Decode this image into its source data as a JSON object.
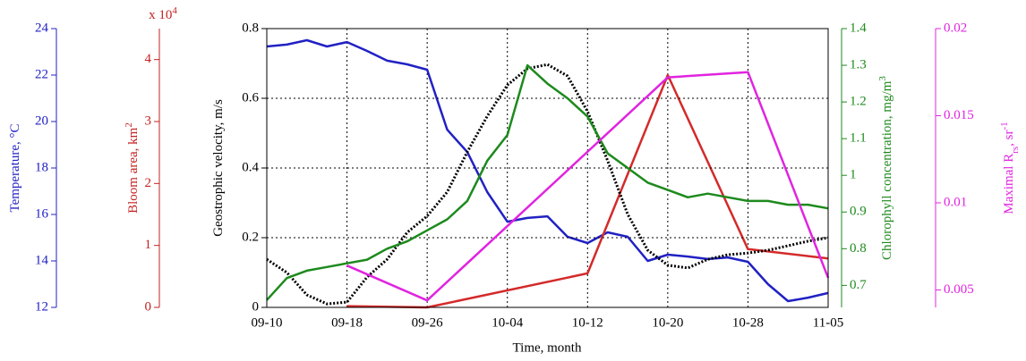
{
  "chart_data": {
    "type": "line",
    "xlabel": "Time, month",
    "xlim": [
      "09-10",
      "11-05"
    ],
    "xticks": [
      "09-10",
      "09-18",
      "09-26",
      "10-04",
      "10-12",
      "10-20",
      "10-28",
      "11-05"
    ],
    "x": [
      "09-10",
      "09-12",
      "09-14",
      "09-16",
      "09-18",
      "09-20",
      "09-22",
      "09-24",
      "09-26",
      "09-28",
      "09-30",
      "10-02",
      "10-04",
      "10-06",
      "10-08",
      "10-10",
      "10-12",
      "10-14",
      "10-16",
      "10-18",
      "10-20",
      "10-22",
      "10-24",
      "10-26",
      "10-28",
      "10-30",
      "11-01",
      "11-03",
      "11-05"
    ],
    "axes": [
      {
        "label": [
          {
            "text": "Temperature, °C"
          }
        ],
        "color": "#2121c4",
        "ylim": [
          12,
          24
        ],
        "yticks": [
          12,
          14,
          16,
          18,
          20,
          22,
          24
        ],
        "series": [
          {
            "color": "#2121c4",
            "style": "solid",
            "values": [
              23.23,
              23.31,
              23.5,
              23.23,
              23.42,
              23.04,
              22.62,
              22.46,
              22.23,
              19.65,
              18.69,
              16.96,
              15.69,
              15.85,
              15.92,
              15.04,
              14.77,
              15.23,
              15.04,
              14.0,
              14.27,
              14.19,
              14.08,
              14.15,
              13.96,
              13.0,
              12.27,
              12.42,
              12.62
            ]
          }
        ]
      },
      {
        "label": [
          {
            "text": "Bloom area, km"
          },
          {
            "sup": "2"
          }
        ],
        "scale": [
          {
            "text": "x 10"
          },
          {
            "sup": "4"
          }
        ],
        "color": "#c42121",
        "ylim": [
          0,
          4.5
        ],
        "yticks": [
          0,
          1,
          2,
          3,
          4
        ],
        "series": [
          {
            "color": "#d42a2a",
            "style": "solid",
            "x": [
              "09-18",
              "09-26",
              "10-12",
              "10-20",
              "10-28",
              "11-05"
            ],
            "values": [
              0.02,
              0,
              0.55,
              3.75,
              0.94,
              0.79
            ]
          }
        ]
      },
      {
        "label": [
          {
            "text": "Geostrophic velocity, m/s"
          }
        ],
        "color": "#000000",
        "grid": true,
        "ylim": [
          0,
          0.8
        ],
        "yticks": [
          0,
          0.2,
          0.4,
          0.6,
          0.8
        ],
        "series": [
          {
            "color": "#000000",
            "style": "dotted",
            "values": [
              0.138,
              0.1,
              0.036,
              0.01,
              0.015,
              0.087,
              0.138,
              0.215,
              0.262,
              0.331,
              0.446,
              0.549,
              0.638,
              0.685,
              0.697,
              0.664,
              0.562,
              0.421,
              0.267,
              0.164,
              0.121,
              0.113,
              0.138,
              0.151,
              0.156,
              0.164,
              0.177,
              0.19,
              0.2
            ]
          }
        ]
      },
      {
        "label": [
          {
            "text": "Chlorophyll concentration, mg/m"
          },
          {
            "sup": "3"
          }
        ],
        "color": "#1d8a1d",
        "ylim": [
          0.64,
          1.4
        ],
        "yticks": [
          0.7,
          0.8,
          0.9,
          1,
          1.1,
          1.2,
          1.3,
          1.4
        ],
        "series": [
          {
            "color": "#1d8a1d",
            "style": "solid",
            "values": [
              0.66,
              0.72,
              0.74,
              0.75,
              0.76,
              0.77,
              0.8,
              0.82,
              0.85,
              0.88,
              0.93,
              1.04,
              1.11,
              1.3,
              1.25,
              1.21,
              1.16,
              1.06,
              1.02,
              0.98,
              0.96,
              0.94,
              0.95,
              0.94,
              0.93,
              0.93,
              0.92,
              0.92,
              0.91
            ]
          }
        ]
      },
      {
        "label": [
          {
            "text": "Maximal R"
          },
          {
            "sub": "rs"
          },
          {
            "text": ", sr"
          },
          {
            "sup": "-1"
          }
        ],
        "color": "#e024e0",
        "ylim": [
          0.004,
          0.02
        ],
        "yticks": [
          0.005,
          0.01,
          0.015,
          0.02
        ],
        "series": [
          {
            "color": "#e024e0",
            "style": "solid",
            "x": [
              "09-18",
              "09-26",
              "10-20",
              "10-28",
              "11-05"
            ],
            "values": [
              0.0064,
              0.0044,
              0.0172,
              0.0175,
              0.0057
            ]
          }
        ]
      }
    ]
  }
}
